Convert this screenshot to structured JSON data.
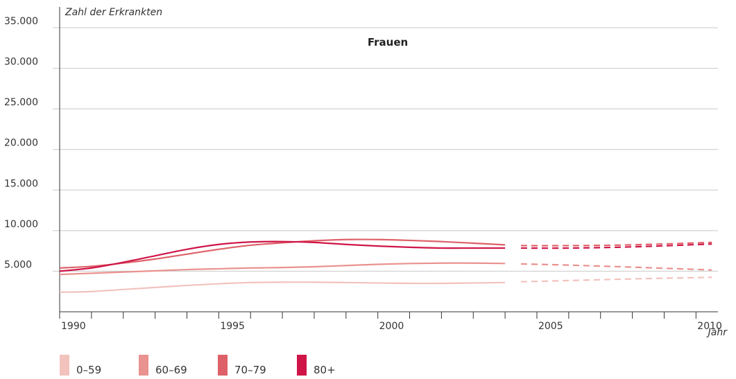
{
  "chart_data": {
    "type": "line",
    "title": "Frauen",
    "ylabel": "Zahl der Erkrankten",
    "xlabel": "Jahr",
    "ylim": [
      0,
      35000
    ],
    "xlim": [
      1990,
      2010.5
    ],
    "grid": true,
    "yticks": [
      {
        "value": 5000,
        "label": "5.000"
      },
      {
        "value": 10000,
        "label": "10.000"
      },
      {
        "value": 15000,
        "label": "15.000"
      },
      {
        "value": 20000,
        "label": "20.000"
      },
      {
        "value": 25000,
        "label": "25.000"
      },
      {
        "value": 30000,
        "label": "30.000"
      },
      {
        "value": 35000,
        "label": "35.000"
      }
    ],
    "xticks": [
      {
        "value": 1990,
        "label": "1990"
      },
      {
        "value": 1995,
        "label": "1995"
      },
      {
        "value": 2000,
        "label": "2000"
      },
      {
        "value": 2005,
        "label": "2005"
      },
      {
        "value": 2010,
        "label": "2010"
      }
    ],
    "legend_position": "bottom-left",
    "series": [
      {
        "name": "0–59",
        "color": "#f2c2bd",
        "x": [
          1990,
          1991,
          1992,
          1993,
          1994,
          1995,
          1996,
          1997,
          1998,
          1999,
          2000,
          2001,
          2002,
          2003,
          2004
        ],
        "values": [
          2400,
          2500,
          2750,
          3000,
          3250,
          3450,
          3600,
          3650,
          3650,
          3600,
          3550,
          3500,
          3500,
          3550,
          3600
        ],
        "projection_x": [
          2004.5,
          2006,
          2008,
          2010.5
        ],
        "projection_values": [
          3700,
          3850,
          4050,
          4250
        ]
      },
      {
        "name": "60–69",
        "color": "#e9928f",
        "x": [
          1990,
          1991,
          1992,
          1993,
          1994,
          1995,
          1996,
          1997,
          1998,
          1999,
          2000,
          2001,
          2002,
          2003,
          2004
        ],
        "values": [
          4600,
          4750,
          4900,
          5050,
          5200,
          5300,
          5400,
          5450,
          5550,
          5700,
          5850,
          5950,
          6000,
          6000,
          5950
        ],
        "projection_x": [
          2004.5,
          2006,
          2008,
          2010.5
        ],
        "projection_values": [
          5900,
          5750,
          5500,
          5150
        ]
      },
      {
        "name": "70–79",
        "color": "#de6068",
        "x": [
          1990,
          1991,
          1992,
          1993,
          1994,
          1995,
          1996,
          1997,
          1998,
          1999,
          2000,
          2001,
          2002,
          2003,
          2004
        ],
        "values": [
          5400,
          5600,
          6000,
          6500,
          7100,
          7700,
          8200,
          8500,
          8750,
          8900,
          8900,
          8800,
          8650,
          8450,
          8250
        ],
        "projection_x": [
          2004.5,
          2006,
          2008,
          2010.5
        ],
        "projection_values": [
          8150,
          8150,
          8250,
          8550
        ]
      },
      {
        "name": "80+",
        "color": "#cf1447",
        "x": [
          1990,
          1991,
          1992,
          1993,
          1994,
          1995,
          1996,
          1997,
          1998,
          1999,
          2000,
          2001,
          2002,
          2003,
          2004
        ],
        "values": [
          5000,
          5400,
          6100,
          6900,
          7700,
          8300,
          8600,
          8650,
          8550,
          8300,
          8100,
          7950,
          7850,
          7850,
          7850
        ],
        "projection_x": [
          2004.5,
          2006,
          2008,
          2010.5
        ],
        "projection_values": [
          7850,
          7850,
          8000,
          8350
        ]
      }
    ]
  }
}
